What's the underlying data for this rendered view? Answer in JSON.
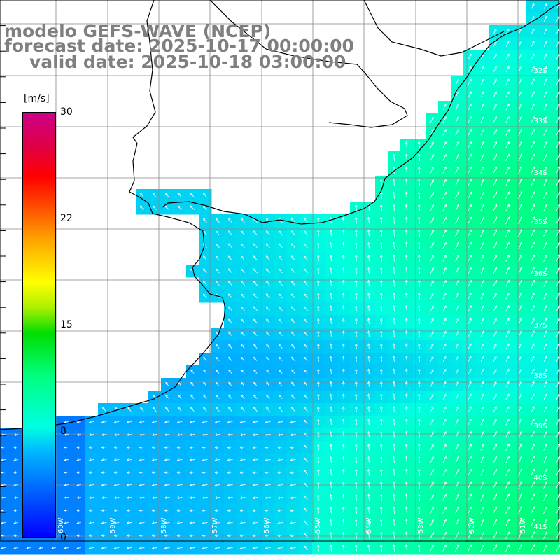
{
  "title": {
    "line1": "modelo GEFS-WAVE (NCEP)",
    "line2": "forecast date: 2025-10-17 00:00:00",
    "line3": "valid date: 2025-10-18 03:00:00"
  },
  "colorbar": {
    "unit": "[m/s]",
    "ticks": [
      "30",
      "22",
      "15",
      "8",
      "0"
    ],
    "range": [
      0,
      30
    ],
    "colors": [
      "#0000ff",
      "#00b6ff",
      "#00ffe0",
      "#00ff7f",
      "#00dd00",
      "#ffff00",
      "#ff4a00",
      "#ff0000",
      "#cc0088"
    ]
  },
  "lat_labels": [
    "32S",
    "33S",
    "34S",
    "35S",
    "36S",
    "37S",
    "38S",
    "39S",
    "40S",
    "41S"
  ],
  "lon_labels": [
    "60W",
    "59W",
    "58W",
    "57W",
    "56W",
    "55W",
    "54W",
    "53W",
    "52W",
    "51W"
  ],
  "field": {
    "variable": "wind speed",
    "speed_range_shown": [
      4,
      13
    ],
    "arrow_direction": "toward the north-east in the east, toward the west along the southern coast"
  }
}
